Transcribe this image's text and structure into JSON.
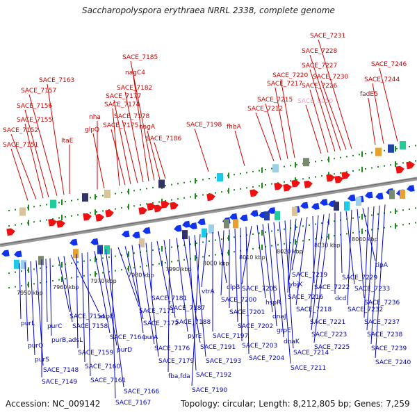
{
  "title": "Saccharopolyspora erythraea NRRL 2338, complete genome",
  "footer": {
    "accession": "Accession: NC_009142",
    "summary": "Topology: circular; Length: 8,212,805 bp; Genes: 7,259"
  },
  "colors": {
    "forward_label": "#cc0000",
    "reverse_label": "#0000cc",
    "highlight_label": "#f0a0c8",
    "forward_arrow": "#ee1111",
    "reverse_arrow": "#1133ee",
    "backbone": "#888888",
    "tick": "#1a8a1a"
  },
  "ruler": [
    "7950 kbp",
    "7960 kbp",
    "7970 kbp",
    "7980 kbp",
    "7990 kbp",
    "8000 kbp",
    "8010 kbp",
    "8020 kbp",
    "8030 kbp",
    "8040 kbp"
  ],
  "forward_labels": [
    "SACE_7151",
    "SACE_7152",
    "SACE_7155",
    "SACE_7156",
    "SACE_7157",
    "SACE_7163",
    "ItaE",
    "nha",
    "glpQ",
    "SACE_7174",
    "SACE_7175",
    "SACE_7177",
    "SACE_7178",
    "SACE_7182",
    "nagC4",
    "SACE_7185",
    "nagA",
    "SACE_7186",
    "SACE_7198",
    "fhbA",
    "SACE_7212",
    "SACE_7215",
    "SACE_7217",
    "SACE_7220",
    "SACE_8050",
    "SACE_7226",
    "SACE_7227",
    "SACE_7228",
    "SACE_7230",
    "SACE_7231",
    "fadE5",
    "SACE_7244",
    "SACE_7246"
  ],
  "reverse_labels": [
    "purL",
    "purQ",
    "purS",
    "SACE_7148",
    "SACE_7149",
    "purC",
    "purB,adsL",
    "SACE_7154",
    "SACE_7158",
    "aspB",
    "SACE_7159",
    "SACE_7160",
    "SACE_7161",
    "SACE_7164",
    "purD",
    "SACE_7166",
    "SACE_7167",
    "SACE_7171",
    "SACE_7172",
    "purA",
    "SACE_7176",
    "SACE_7179",
    "SACE_7181",
    "SACE_7187",
    "SACE_7188",
    "fba,fda",
    "pyrE",
    "SACE_7191",
    "SACE_7192",
    "SACE_7193",
    "SACE_7190",
    "vtrA",
    "SACE_7197",
    "clpB",
    "SACE_7200",
    "SACE_7201",
    "SACE_7202",
    "SACE_7203",
    "SACE_7204",
    "SACE_7205",
    "hspR",
    "dnaJ",
    "grpE",
    "dnaK",
    "SACE_7211",
    "SACE_7214",
    "SACE_7216",
    "ybjK",
    "SACE_7219",
    "SACE_7218",
    "SACE_7222",
    "SACE_7221",
    "SACE_7223",
    "SACE_7225",
    "dcd",
    "SACE_7229",
    "SACE_7233",
    "SACE_7232",
    "SACE_7236",
    "tipA",
    "SACE_7237",
    "SACE_7238",
    "SACE_7239",
    "SACE_7240"
  ]
}
